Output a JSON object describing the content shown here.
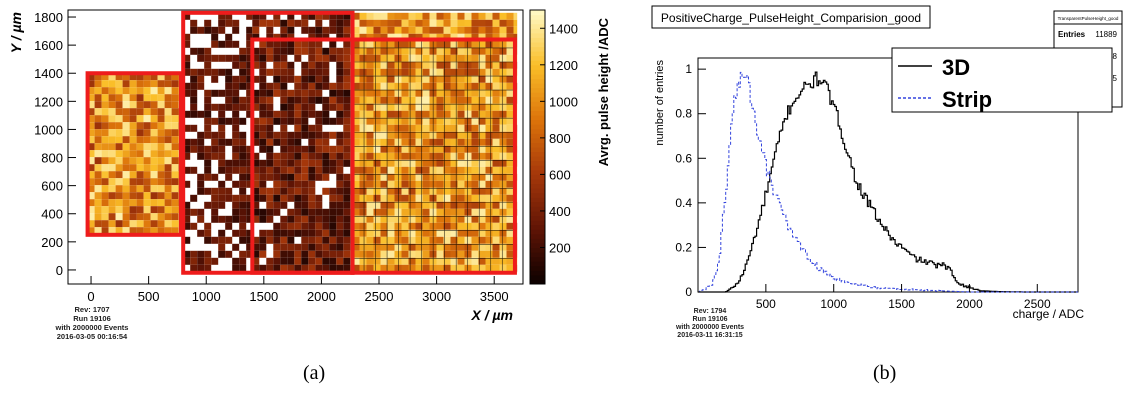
{
  "captions": {
    "left": "(a)",
    "right": "(b)"
  },
  "chart_data": [
    {
      "type": "heatmap",
      "title": "",
      "xlabel": "X / µm",
      "ylabel": "Y / µm",
      "zlabel": "Avrg. pulse height /ADC",
      "xlim": [
        -200,
        3750
      ],
      "ylim": [
        -100,
        1850
      ],
      "zlim": [
        0,
        1500
      ],
      "xticks": [
        0,
        500,
        1000,
        1500,
        2000,
        2500,
        3000,
        3500
      ],
      "yticks": [
        0,
        200,
        400,
        600,
        800,
        1000,
        1200,
        1400,
        1600,
        1800
      ],
      "zticks": [
        200,
        400,
        600,
        800,
        1000,
        1200,
        1400
      ],
      "regions": [
        {
          "xmin": -30,
          "xmax": 780,
          "ymin": 250,
          "ymax": 1400,
          "mean_adc": 1000
        },
        {
          "xmin": 800,
          "xmax": 1400,
          "ymin": -20,
          "ymax": 1830,
          "mean_adc": 250
        },
        {
          "xmin": 1400,
          "xmax": 2270,
          "ymin": -20,
          "ymax": 1830,
          "mean_adc": 350
        },
        {
          "xmin": 2270,
          "xmax": 3700,
          "ymin": -20,
          "ymax": 1830,
          "mean_adc": 1050
        }
      ],
      "highlight_boxes": [
        {
          "xmin": -30,
          "xmax": 780,
          "ymin": 250,
          "ymax": 1400
        },
        {
          "xmin": 800,
          "xmax": 2270,
          "ymin": -20,
          "ymax": 1830
        },
        {
          "xmin": 1400,
          "xmax": 2270,
          "ymin": -20,
          "ymax": 1640
        },
        {
          "xmin": 2270,
          "xmax": 3680,
          "ymin": -20,
          "ymax": 1640
        }
      ],
      "stamp": [
        "Rev: 1707",
        "Run 19106",
        "with 2000000 Events",
        "2016-03-05 00:16:54"
      ]
    },
    {
      "type": "line",
      "title": "PositiveCharge_PulseHeight_Comparision_good",
      "xlabel": "charge / ADC",
      "ylabel": "number of entries",
      "xlim": [
        0,
        2800
      ],
      "ylim": [
        0,
        1.05
      ],
      "xticks": [
        500,
        1000,
        1500,
        2000,
        2500
      ],
      "yticks": [
        0,
        0.2,
        0.4,
        0.6,
        0.8,
        1
      ],
      "ytick_labels": [
        "0",
        "0.2",
        "0.4",
        "0.6",
        "0.8",
        "1"
      ],
      "stats_box": {
        "header": "TransparentPulseHeight_good",
        "rows": [
          {
            "label": "Entries",
            "value": "11889"
          },
          {
            "label": "",
            "value": "957.8"
          },
          {
            "label": "",
            "value": "398.5"
          }
        ]
      },
      "series": [
        {
          "name": "3D",
          "color": "#000000",
          "style": "solid-step",
          "x": [
            0,
            200,
            250,
            300,
            350,
            400,
            450,
            500,
            550,
            600,
            650,
            700,
            750,
            800,
            850,
            900,
            950,
            1000,
            1050,
            1100,
            1150,
            1200,
            1250,
            1300,
            1350,
            1400,
            1450,
            1500,
            1550,
            1600,
            1650,
            1700,
            1750,
            1800,
            1850,
            1900,
            1950,
            2000,
            2050,
            2100,
            2200,
            2400,
            2600,
            2800
          ],
          "y": [
            0,
            0,
            0.02,
            0.05,
            0.12,
            0.22,
            0.33,
            0.45,
            0.58,
            0.7,
            0.8,
            0.86,
            0.9,
            0.92,
            0.95,
            0.96,
            0.9,
            0.82,
            0.73,
            0.62,
            0.52,
            0.45,
            0.4,
            0.35,
            0.3,
            0.26,
            0.22,
            0.2,
            0.17,
            0.15,
            0.14,
            0.13,
            0.12,
            0.12,
            0.1,
            0.05,
            0.03,
            0.02,
            0.01,
            0.005,
            0.002,
            0,
            0,
            0
          ]
        },
        {
          "name": "Strip",
          "color": "#3344dd",
          "style": "dashed-step",
          "x": [
            0,
            100,
            150,
            200,
            250,
            300,
            330,
            360,
            400,
            450,
            500,
            550,
            600,
            650,
            700,
            750,
            800,
            850,
            900,
            950,
            1000,
            1050,
            1100,
            1200,
            1300,
            1400,
            1600,
            1800,
            2000,
            2800
          ],
          "y": [
            0,
            0.03,
            0.15,
            0.45,
            0.82,
            0.94,
            0.99,
            0.95,
            0.82,
            0.68,
            0.55,
            0.46,
            0.38,
            0.31,
            0.25,
            0.2,
            0.16,
            0.13,
            0.1,
            0.08,
            0.06,
            0.05,
            0.04,
            0.03,
            0.02,
            0.015,
            0.01,
            0.005,
            0,
            0
          ]
        }
      ],
      "stamp": [
        "Rev: 1794",
        "Run 19106",
        "with 2000000 Events",
        "2016-03-11 16:31:15"
      ]
    }
  ]
}
